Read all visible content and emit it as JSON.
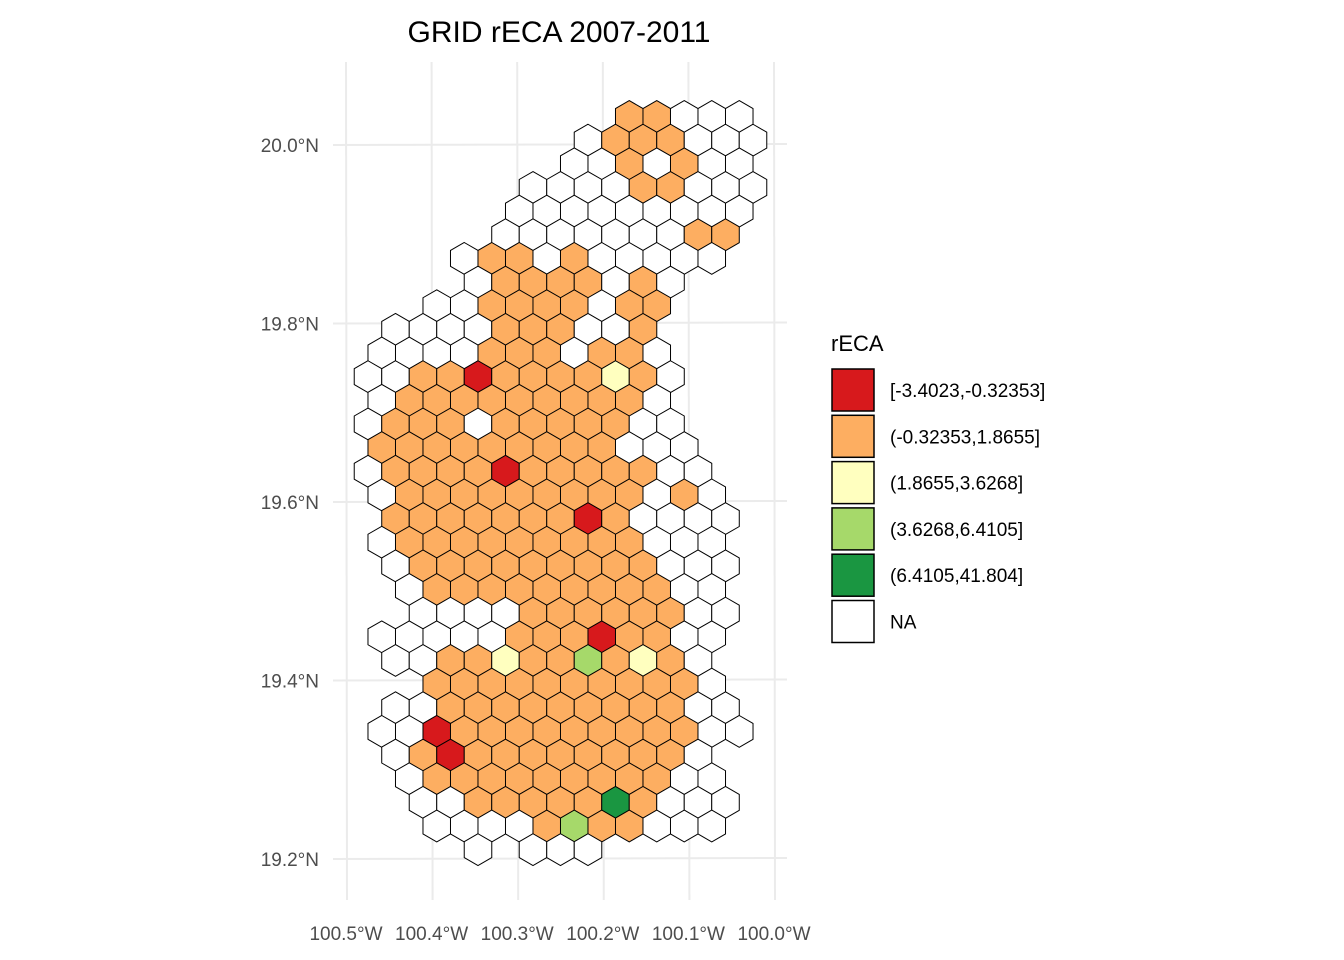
{
  "chart_data": {
    "type": "heatmap",
    "subtype": "hexagonal-grid choropleth map",
    "title": "GRID rECA 2007-2011",
    "xlabel": "",
    "ylabel": "",
    "x_ticks": [
      "100.5°W",
      "100.4°W",
      "100.3°W",
      "100.2°W",
      "100.1°W",
      "100.0°W"
    ],
    "x_tick_values": [
      -100.5,
      -100.4,
      -100.3,
      -100.2,
      -100.1,
      -100.0
    ],
    "y_ticks": [
      "20.0°N",
      "19.8°N",
      "19.6°N",
      "19.4°N",
      "19.2°N"
    ],
    "y_tick_values": [
      20.0,
      19.8,
      19.6,
      19.4,
      19.2
    ],
    "grid": true,
    "legend": {
      "title": "rECA",
      "position": "right",
      "entries": [
        {
          "code": "R",
          "label": "[-3.4023,-0.32353]",
          "color": "#d7191c"
        },
        {
          "code": "O",
          "label": "(-0.32353,1.8655]",
          "color": "#fdae61"
        },
        {
          "code": "Y",
          "label": "(1.8655,3.6268]",
          "color": "#ffffbf"
        },
        {
          "code": "L",
          "label": "(3.6268,6.4105]",
          "color": "#a6d96a"
        },
        {
          "code": "G",
          "label": "(6.4105,41.804]",
          "color": "#1a9641"
        },
        {
          "code": "W",
          "label": "NA",
          "color": "#ffffff"
        }
      ]
    },
    "hex_grid_note": "Rows listed north to south; each row gives the first half-column index and a string of bin codes for consecutive cells (step 2 half-columns); '_' = no cell.",
    "rows": [
      {
        "start": 19,
        "cells": "OOWWW"
      },
      {
        "start": 16,
        "cells": "WOOOWWW"
      },
      {
        "start": 15,
        "cells": "WWOWOWW"
      },
      {
        "start": 12,
        "cells": "WWWWOOWWW"
      },
      {
        "start": 11,
        "cells": "WWWWWWWWW"
      },
      {
        "start": 10,
        "cells": "WWWWWWWOO"
      },
      {
        "start": 7,
        "cells": "WOOWOWWWWW"
      },
      {
        "start": 8,
        "cells": "WOOOOWOW"
      },
      {
        "start": 5,
        "cells": "WWOOOOWOO"
      },
      {
        "start": 2,
        "cells": "WWWWOOOWWO"
      },
      {
        "start": 1,
        "cells": "WWWWOOOWOOW"
      },
      {
        "start": 0,
        "cells": "WWOOROOOOYOW"
      },
      {
        "start": 1,
        "cells": "WOOOOOOOOOW"
      },
      {
        "start": 0,
        "cells": "WOOOWOOOOOWW"
      },
      {
        "start": 1,
        "cells": "OOOOOOOOOWWW"
      },
      {
        "start": 0,
        "cells": "WOOOOROOOOOWW"
      },
      {
        "start": 1,
        "cells": "WOOOOOOOOOWOW"
      },
      {
        "start": 2,
        "cells": "OOOOOOOROWWWW"
      },
      {
        "start": 1,
        "cells": "WOOOOOOOOOWWW"
      },
      {
        "start": 2,
        "cells": "WOOOOOOOOOWWW"
      },
      {
        "start": 3,
        "cells": "WOOOOOOOOOWW"
      },
      {
        "start": 4,
        "cells": "WWWWOOOOOOWW"
      },
      {
        "start": 1,
        "cells": "WWWWWOOOROOWW"
      },
      {
        "start": 2,
        "cells": "WWOOYOOLOYOW"
      },
      {
        "start": 5,
        "cells": "OOOOOOOOOOW"
      },
      {
        "start": 2,
        "cells": "WWOOOOOOOOOWW"
      },
      {
        "start": 1,
        "cells": "WWROOOOOOOOOWW"
      },
      {
        "start": 2,
        "cells": "WOROOOOOOOOW"
      },
      {
        "start": 3,
        "cells": "WOOOOOOOOOWW"
      },
      {
        "start": 4,
        "cells": "WWOOOOOGOWWW"
      },
      {
        "start": 5,
        "cells": "WWWWOLOOWWW"
      },
      {
        "start": 8,
        "cells": "W_WWW"
      }
    ]
  }
}
